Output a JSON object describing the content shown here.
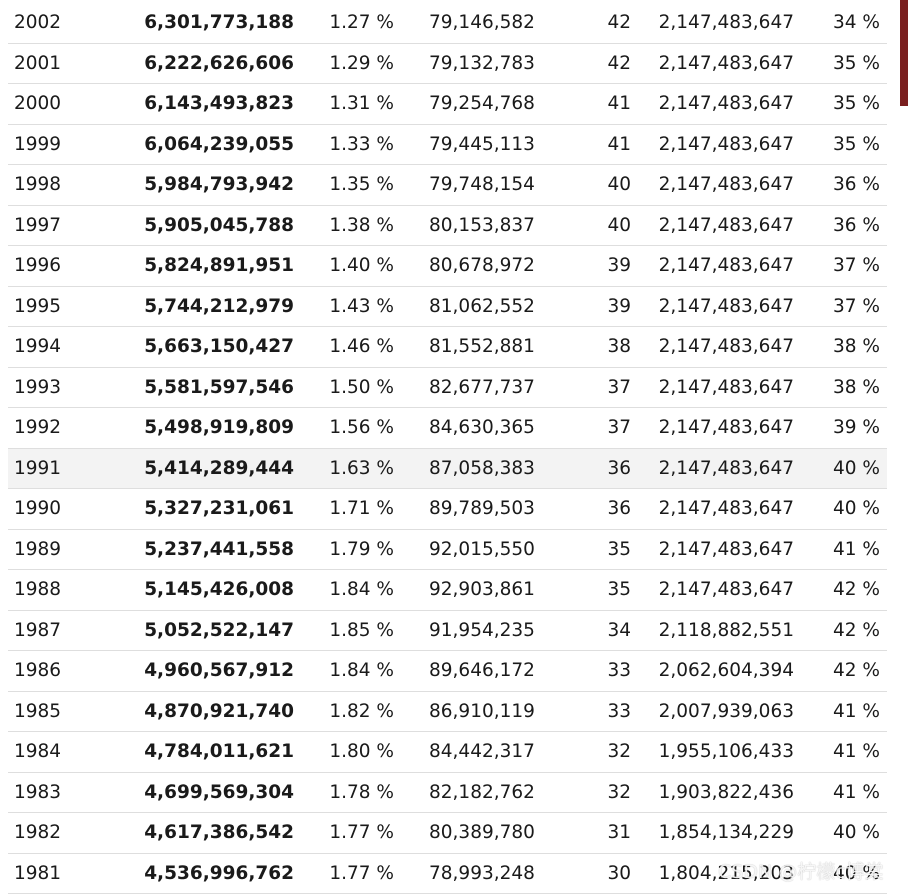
{
  "rows": [
    {
      "year": "2002",
      "population": "6,301,773,188",
      "rate": "1.27 %",
      "change": "79,146,582",
      "median_age": "42",
      "big": "2,147,483,647",
      "pct": "34 %"
    },
    {
      "year": "2001",
      "population": "6,222,626,606",
      "rate": "1.29 %",
      "change": "79,132,783",
      "median_age": "42",
      "big": "2,147,483,647",
      "pct": "35 %"
    },
    {
      "year": "2000",
      "population": "6,143,493,823",
      "rate": "1.31 %",
      "change": "79,254,768",
      "median_age": "41",
      "big": "2,147,483,647",
      "pct": "35 %"
    },
    {
      "year": "1999",
      "population": "6,064,239,055",
      "rate": "1.33 %",
      "change": "79,445,113",
      "median_age": "41",
      "big": "2,147,483,647",
      "pct": "35 %"
    },
    {
      "year": "1998",
      "population": "5,984,793,942",
      "rate": "1.35 %",
      "change": "79,748,154",
      "median_age": "40",
      "big": "2,147,483,647",
      "pct": "36 %"
    },
    {
      "year": "1997",
      "population": "5,905,045,788",
      "rate": "1.38 %",
      "change": "80,153,837",
      "median_age": "40",
      "big": "2,147,483,647",
      "pct": "36 %"
    },
    {
      "year": "1996",
      "population": "5,824,891,951",
      "rate": "1.40 %",
      "change": "80,678,972",
      "median_age": "39",
      "big": "2,147,483,647",
      "pct": "37 %"
    },
    {
      "year": "1995",
      "population": "5,744,212,979",
      "rate": "1.43 %",
      "change": "81,062,552",
      "median_age": "39",
      "big": "2,147,483,647",
      "pct": "37 %"
    },
    {
      "year": "1994",
      "population": "5,663,150,427",
      "rate": "1.46 %",
      "change": "81,552,881",
      "median_age": "38",
      "big": "2,147,483,647",
      "pct": "38 %"
    },
    {
      "year": "1993",
      "population": "5,581,597,546",
      "rate": "1.50 %",
      "change": "82,677,737",
      "median_age": "37",
      "big": "2,147,483,647",
      "pct": "38 %"
    },
    {
      "year": "1992",
      "population": "5,498,919,809",
      "rate": "1.56 %",
      "change": "84,630,365",
      "median_age": "37",
      "big": "2,147,483,647",
      "pct": "39 %"
    },
    {
      "year": "1991",
      "population": "5,414,289,444",
      "rate": "1.63 %",
      "change": "87,058,383",
      "median_age": "36",
      "big": "2,147,483,647",
      "pct": "40 %"
    },
    {
      "year": "1990",
      "population": "5,327,231,061",
      "rate": "1.71 %",
      "change": "89,789,503",
      "median_age": "36",
      "big": "2,147,483,647",
      "pct": "40 %"
    },
    {
      "year": "1989",
      "population": "5,237,441,558",
      "rate": "1.79 %",
      "change": "92,015,550",
      "median_age": "35",
      "big": "2,147,483,647",
      "pct": "41 %"
    },
    {
      "year": "1988",
      "population": "5,145,426,008",
      "rate": "1.84 %",
      "change": "92,903,861",
      "median_age": "35",
      "big": "2,147,483,647",
      "pct": "42 %"
    },
    {
      "year": "1987",
      "population": "5,052,522,147",
      "rate": "1.85 %",
      "change": "91,954,235",
      "median_age": "34",
      "big": "2,118,882,551",
      "pct": "42 %"
    },
    {
      "year": "1986",
      "population": "4,960,567,912",
      "rate": "1.84 %",
      "change": "89,646,172",
      "median_age": "33",
      "big": "2,062,604,394",
      "pct": "42 %"
    },
    {
      "year": "1985",
      "population": "4,870,921,740",
      "rate": "1.82 %",
      "change": "86,910,119",
      "median_age": "33",
      "big": "2,007,939,063",
      "pct": "41 %"
    },
    {
      "year": "1984",
      "population": "4,784,011,621",
      "rate": "1.80 %",
      "change": "84,442,317",
      "median_age": "32",
      "big": "1,955,106,433",
      "pct": "41 %"
    },
    {
      "year": "1983",
      "population": "4,699,569,304",
      "rate": "1.78 %",
      "change": "82,182,762",
      "median_age": "32",
      "big": "1,903,822,436",
      "pct": "41 %"
    },
    {
      "year": "1982",
      "population": "4,617,386,542",
      "rate": "1.77 %",
      "change": "80,389,780",
      "median_age": "31",
      "big": "1,854,134,229",
      "pct": "40 %"
    },
    {
      "year": "1981",
      "population": "4,536,996,762",
      "rate": "1.77 %",
      "change": "78,993,248",
      "median_age": "30",
      "big": "1,804,215,203",
      "pct": "40 %"
    }
  ],
  "highlighted_year": "1991",
  "watermark": "CSDN @柠檬c博棠",
  "colors": {
    "row_border": "#dedede",
    "highlight_bg": "#f3f3f3",
    "side_bar": "#7a1f1f"
  }
}
